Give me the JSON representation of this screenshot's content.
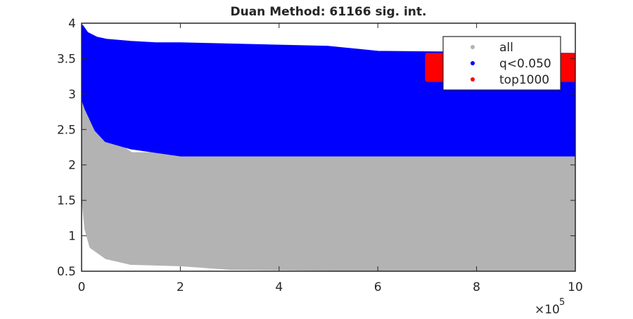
{
  "chart_data": {
    "type": "scatter",
    "title": "Duan Method: 61166 sig. int.",
    "x_exponent_base": "×10",
    "x_exponent": 5,
    "xlim": [
      0,
      1000000
    ],
    "xticks": [
      0,
      {
        "value": 200000,
        "label": "2"
      },
      {
        "value": 400000,
        "label": "4"
      },
      {
        "value": 600000,
        "label": "6"
      },
      {
        "value": 800000,
        "label": "8"
      },
      {
        "value": 1000000,
        "label": "10"
      }
    ],
    "ylim": [
      0.5,
      4
    ],
    "yticks": [
      0.5,
      1,
      1.5,
      2,
      2.5,
      3,
      3.5,
      4
    ],
    "legend": "top-right",
    "series": [
      {
        "name": "all",
        "color": "#b3b3b3",
        "x": [
          0,
          10000,
          20000,
          50000,
          100000,
          200000,
          300000,
          600000,
          1000000
        ],
        "lower": [
          1.8,
          1.1,
          0.85,
          0.7,
          0.62,
          0.6,
          0.55,
          0.53,
          0.52
        ],
        "upper": [
          3.9,
          3.2,
          2.9,
          2.4,
          2.15,
          2.15,
          2.15,
          2.15,
          2.15
        ]
      },
      {
        "name": "q<0.050",
        "color": "#0000ff",
        "x": [
          0,
          10000,
          30000,
          50000,
          100000,
          150000,
          200000,
          500000,
          600000,
          1000000
        ],
        "lower": [
          3.0,
          2.8,
          2.5,
          2.35,
          2.25,
          2.2,
          2.15,
          2.15,
          2.15,
          2.15
        ],
        "upper": [
          3.95,
          3.85,
          3.78,
          3.75,
          3.72,
          3.7,
          3.7,
          3.65,
          3.58,
          3.55
        ]
      },
      {
        "name": "top1000",
        "color": "#ff0000",
        "x": [
          700000,
          800000,
          900000,
          1000000
        ],
        "lower": [
          3.2,
          3.2,
          3.2,
          3.2
        ],
        "upper": [
          3.55,
          3.55,
          3.55,
          3.55
        ]
      }
    ]
  }
}
